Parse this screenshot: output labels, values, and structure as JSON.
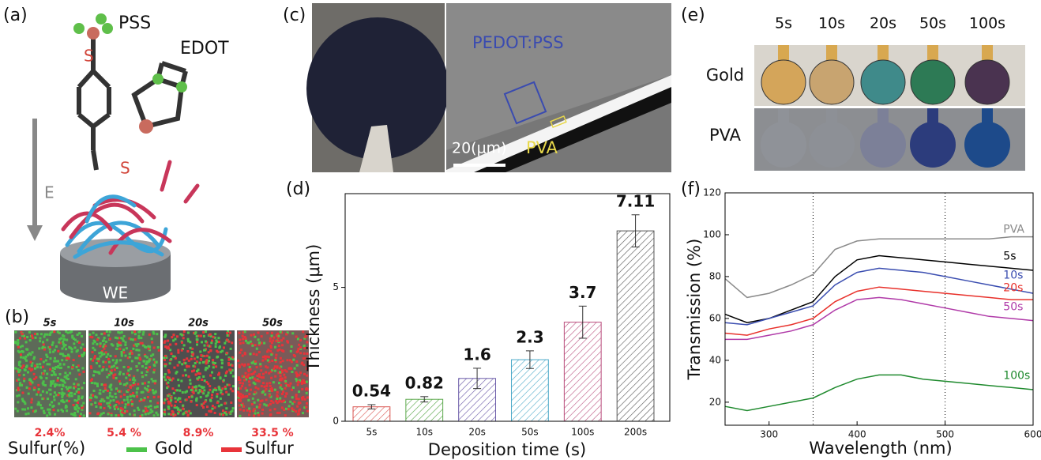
{
  "panel_a": {
    "label": "(a)",
    "pss": "PSS",
    "edot": "EDOT",
    "sulfur_atoms": [
      "S",
      "S"
    ],
    "field": "E",
    "electrode": "WE"
  },
  "panel_b": {
    "label": "(b)",
    "times": [
      "5s",
      "10s",
      "20s",
      "50s"
    ],
    "sulfur": [
      "2.4%",
      "5.4 %",
      "8.9%",
      "33.5 %"
    ],
    "legend_title": "Sulfur(%)",
    "legend": [
      {
        "name": "Gold",
        "color": "#4cc24a"
      },
      {
        "name": "Sulfur",
        "color": "#e8343a"
      }
    ]
  },
  "panel_c": {
    "label": "(c)",
    "layer_top": "PEDOT:PSS",
    "layer_bottom": "PVA",
    "scale_bar": "20(μm)"
  },
  "panel_e": {
    "label": "(e)",
    "times": [
      "5s",
      "10s",
      "20s",
      "50s",
      "100s"
    ],
    "rows": [
      "Gold",
      "PVA"
    ]
  },
  "chart_data": [
    {
      "type": "bar",
      "panel_label": "(d)",
      "x_label": "Deposition time (s)",
      "y_label": "Thickness (μm)",
      "categories": [
        "5s",
        "10s",
        "20s",
        "50s",
        "100s",
        "200s"
      ],
      "values": [
        0.54,
        0.82,
        1.6,
        2.3,
        3.7,
        7.11
      ],
      "errors": [
        0.08,
        0.1,
        0.38,
        0.33,
        0.6,
        0.6
      ],
      "colors": [
        "#d9534f",
        "#5aa84a",
        "#6a5aa8",
        "#4aa8c8",
        "#b84a7a",
        "#555555"
      ],
      "ylim": [
        0,
        8.5
      ],
      "yticks": [
        0,
        5
      ]
    },
    {
      "type": "line",
      "panel_label": "(f)",
      "x_label": "Wavelength (nm)",
      "y_label": "Transmission (%)",
      "x": [
        250,
        275,
        300,
        325,
        350,
        375,
        400,
        425,
        450,
        475,
        500,
        525,
        550,
        575,
        600
      ],
      "series": [
        {
          "name": "PVA",
          "color": "#8a8a8a",
          "values": [
            79,
            70,
            72,
            76,
            81,
            93,
            97,
            98,
            98,
            98,
            98,
            98,
            98,
            99,
            99
          ]
        },
        {
          "name": "5s",
          "color": "#000000",
          "values": [
            62,
            58,
            60,
            64,
            68,
            80,
            88,
            90,
            89,
            88,
            87,
            86,
            85,
            84,
            83
          ]
        },
        {
          "name": "10s",
          "color": "#3a4db0",
          "values": [
            58,
            57,
            60,
            63,
            66,
            76,
            82,
            84,
            83,
            82,
            80,
            78,
            76,
            74,
            72
          ]
        },
        {
          "name": "20s",
          "color": "#e8302a",
          "values": [
            53,
            52,
            55,
            57,
            60,
            68,
            73,
            75,
            74,
            73,
            72,
            71,
            70,
            69,
            69
          ]
        },
        {
          "name": "50s",
          "color": "#b03aa8",
          "values": [
            50,
            50,
            52,
            54,
            57,
            64,
            69,
            70,
            69,
            67,
            65,
            63,
            61,
            60,
            59
          ]
        },
        {
          "name": "100s",
          "color": "#1f8a2e",
          "values": [
            18,
            16,
            18,
            20,
            22,
            27,
            31,
            33,
            33,
            31,
            30,
            29,
            28,
            27,
            26
          ]
        }
      ],
      "vlines": [
        350,
        500
      ],
      "xlim": [
        250,
        600
      ],
      "xticks": [
        300,
        400,
        500,
        600
      ],
      "ylim": [
        9,
        120
      ],
      "yticks": [
        20,
        40,
        60,
        80,
        100,
        120
      ]
    }
  ]
}
